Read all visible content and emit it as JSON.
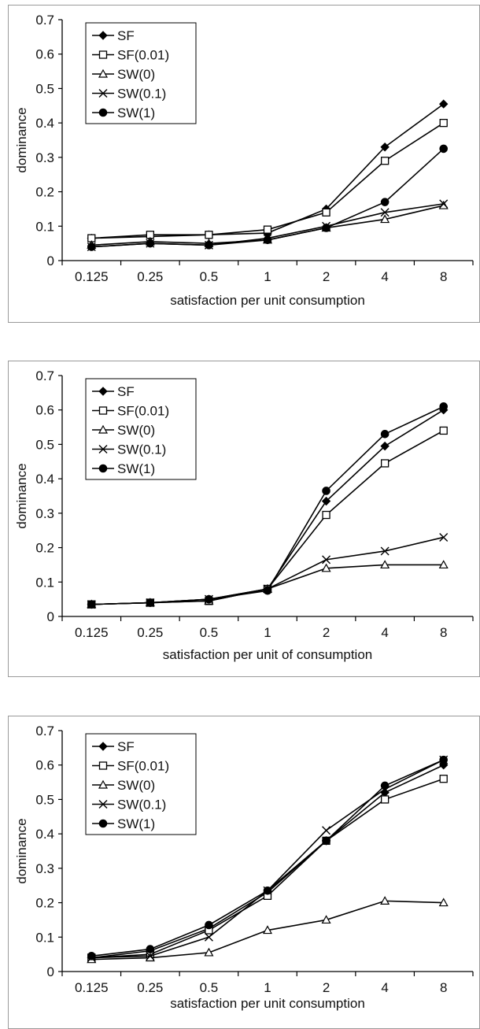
{
  "chart_data": [
    {
      "type": "line",
      "title": "",
      "xlabel": "satisfaction per unit consumption",
      "ylabel": "dominance",
      "categories": [
        "0.125",
        "0.25",
        "0.5",
        "1",
        "2",
        "4",
        "8"
      ],
      "ylim": [
        0,
        0.7
      ],
      "yticks": [
        "0",
        "0.1",
        "0.2",
        "0.3",
        "0.4",
        "0.5",
        "0.6",
        "0.7"
      ],
      "grid": false,
      "legend_position": "top-left",
      "series": [
        {
          "name": "SF",
          "marker": "diamond",
          "values": [
            0.065,
            0.07,
            0.075,
            0.08,
            0.15,
            0.33,
            0.455
          ]
        },
        {
          "name": "SF(0.01)",
          "marker": "square-open",
          "values": [
            0.065,
            0.075,
            0.075,
            0.09,
            0.14,
            0.29,
            0.4
          ]
        },
        {
          "name": "SW(0)",
          "marker": "triangle-open",
          "values": [
            0.045,
            0.055,
            0.05,
            0.06,
            0.095,
            0.12,
            0.16
          ]
        },
        {
          "name": "SW(0.1)",
          "marker": "x",
          "values": [
            0.04,
            0.05,
            0.045,
            0.065,
            0.1,
            0.14,
            0.165
          ]
        },
        {
          "name": "SW(1)",
          "marker": "circle",
          "values": [
            0.04,
            0.05,
            0.045,
            0.06,
            0.095,
            0.17,
            0.325
          ]
        }
      ]
    },
    {
      "type": "line",
      "title": "",
      "xlabel": "satisfaction per unit of consumption",
      "ylabel": "dominance",
      "categories": [
        "0.125",
        "0.25",
        "0.5",
        "1",
        "2",
        "4",
        "8"
      ],
      "ylim": [
        0,
        0.7
      ],
      "yticks": [
        "0",
        "0.1",
        "0.2",
        "0.3",
        "0.4",
        "0.5",
        "0.6",
        "0.7"
      ],
      "grid": false,
      "legend_position": "top-left",
      "series": [
        {
          "name": "SF",
          "marker": "diamond",
          "values": [
            0.035,
            0.04,
            0.05,
            0.08,
            0.335,
            0.495,
            0.6
          ]
        },
        {
          "name": "SF(0.01)",
          "marker": "square-open",
          "values": [
            0.035,
            0.04,
            0.045,
            0.08,
            0.295,
            0.445,
            0.54
          ]
        },
        {
          "name": "SW(0)",
          "marker": "triangle-open",
          "values": [
            0.035,
            0.04,
            0.045,
            0.08,
            0.14,
            0.15,
            0.15
          ]
        },
        {
          "name": "SW(0.1)",
          "marker": "x",
          "values": [
            0.035,
            0.04,
            0.05,
            0.08,
            0.165,
            0.19,
            0.23
          ]
        },
        {
          "name": "SW(1)",
          "marker": "circle",
          "values": [
            0.035,
            0.04,
            0.05,
            0.075,
            0.365,
            0.53,
            0.61
          ]
        }
      ]
    },
    {
      "type": "line",
      "title": "",
      "xlabel": "satisfaction per unit consumption",
      "ylabel": "dominance",
      "categories": [
        "0.125",
        "0.25",
        "0.5",
        "1",
        "2",
        "4",
        "8"
      ],
      "ylim": [
        0,
        0.7
      ],
      "yticks": [
        "0",
        "0.1",
        "0.2",
        "0.3",
        "0.4",
        "0.5",
        "0.6",
        "0.7"
      ],
      "grid": false,
      "legend_position": "top-left",
      "series": [
        {
          "name": "SF",
          "marker": "diamond",
          "values": [
            0.04,
            0.06,
            0.125,
            0.23,
            0.38,
            0.52,
            0.6
          ]
        },
        {
          "name": "SF(0.01)",
          "marker": "square-open",
          "values": [
            0.04,
            0.05,
            0.12,
            0.22,
            0.38,
            0.5,
            0.56
          ]
        },
        {
          "name": "SW(0)",
          "marker": "triangle-open",
          "values": [
            0.035,
            0.04,
            0.055,
            0.12,
            0.15,
            0.205,
            0.2
          ]
        },
        {
          "name": "SW(0.1)",
          "marker": "x",
          "values": [
            0.04,
            0.045,
            0.1,
            0.235,
            0.41,
            0.53,
            0.615
          ]
        },
        {
          "name": "SW(1)",
          "marker": "circle",
          "values": [
            0.045,
            0.065,
            0.135,
            0.235,
            0.38,
            0.54,
            0.615
          ]
        }
      ]
    }
  ]
}
